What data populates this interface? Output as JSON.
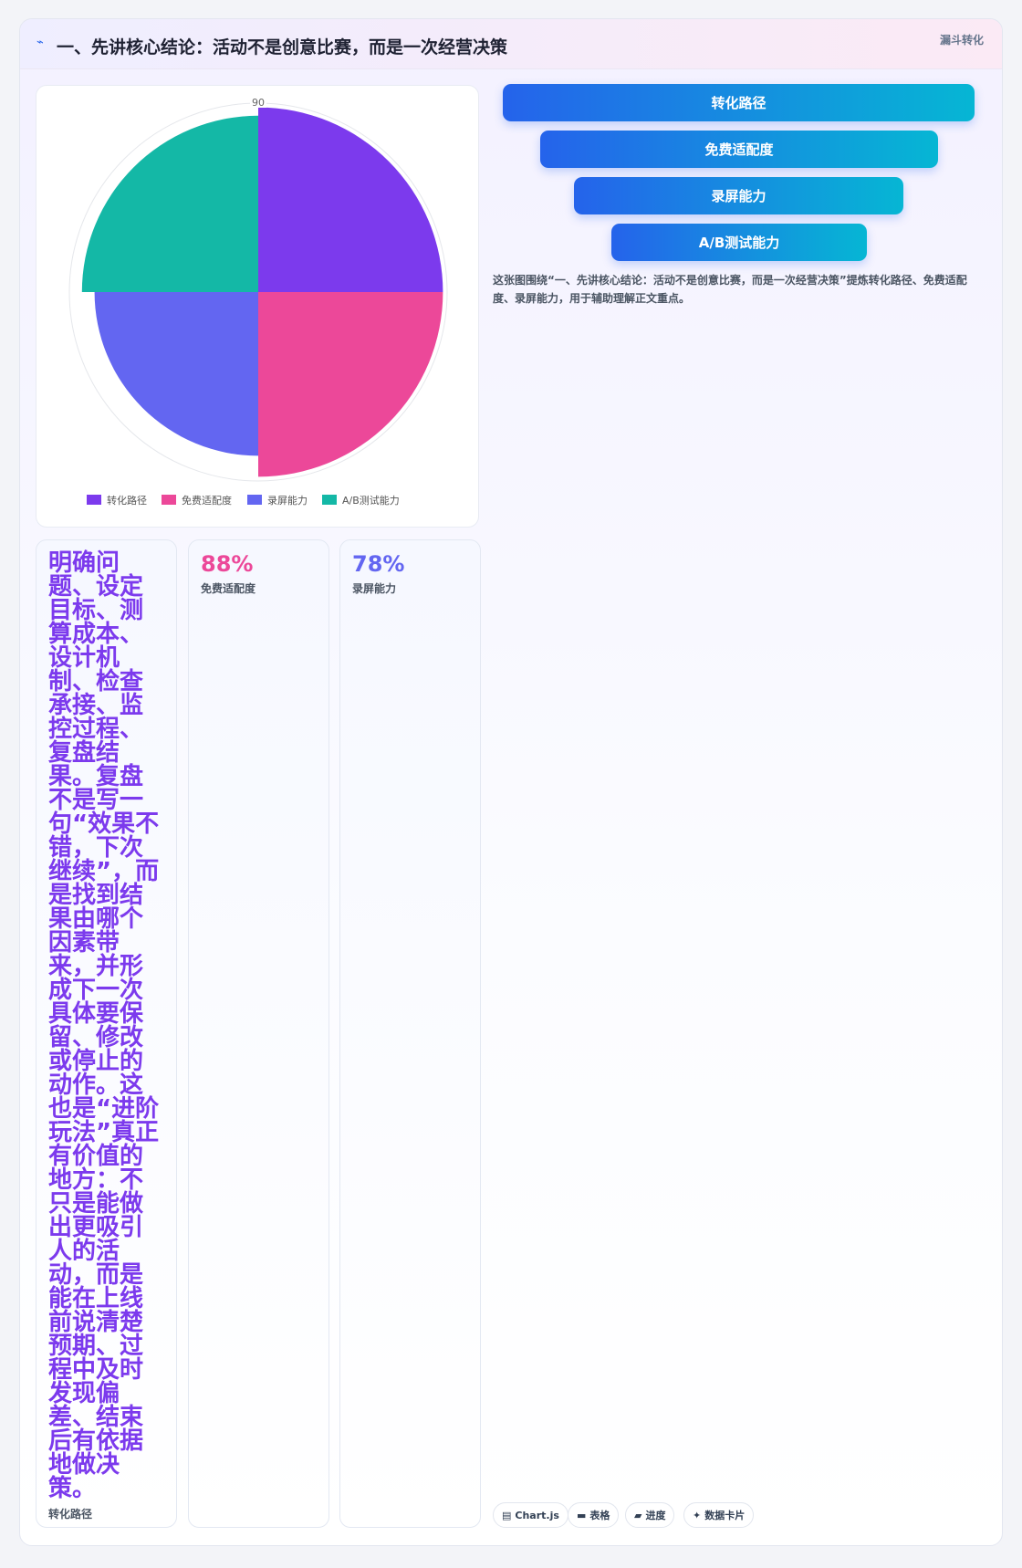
{
  "header": {
    "title": "一、先讲核心结论：活动不是创意比赛，而是一次经营决策",
    "tag": "漏斗转化"
  },
  "chart_data": {
    "type": "polar",
    "categories": [
      "转化路径",
      "免费适配度",
      "录屏能力",
      "A/B测试能力"
    ],
    "values": [
      88,
      88,
      78,
      84
    ],
    "colors": [
      "#7c3aed",
      "#ec4899",
      "#6366f1",
      "#14b8a6"
    ],
    "rlim": [
      0,
      90
    ],
    "rticks": [
      90
    ],
    "legend": "bottom"
  },
  "funnel": [
    "转化路径",
    "免费适配度",
    "录屏能力",
    "A/B测试能力"
  ],
  "caption": "这张图围绕“一、先讲核心结论：活动不是创意比赛，而是一次经营决策”提炼转化路径、免费适配度、录屏能力，用于辅助理解正文重点。",
  "stats": [
    {
      "value": "明确问题、设定目标、测算成本、设计机制、检查承接、监控过程、复盘结果。复盘不是写一句“效果不错，下次继续”，而是找到结果由哪个因素带来，并形成下一次具体要保留、修改或停止的动作。这也是“进阶玩法”真正有价值的地方：不只是能做出更吸引人的活动，而是能在上线前说清楚预期、过程中及时发现偏差、结束后有依据地做决策。",
      "label": "转化路径"
    },
    {
      "value": "88%",
      "label": "免费适配度"
    },
    {
      "value": "78%",
      "label": "录屏能力"
    }
  ],
  "chips": [
    "Chart.js",
    "表格",
    "进度",
    "数据卡片"
  ]
}
